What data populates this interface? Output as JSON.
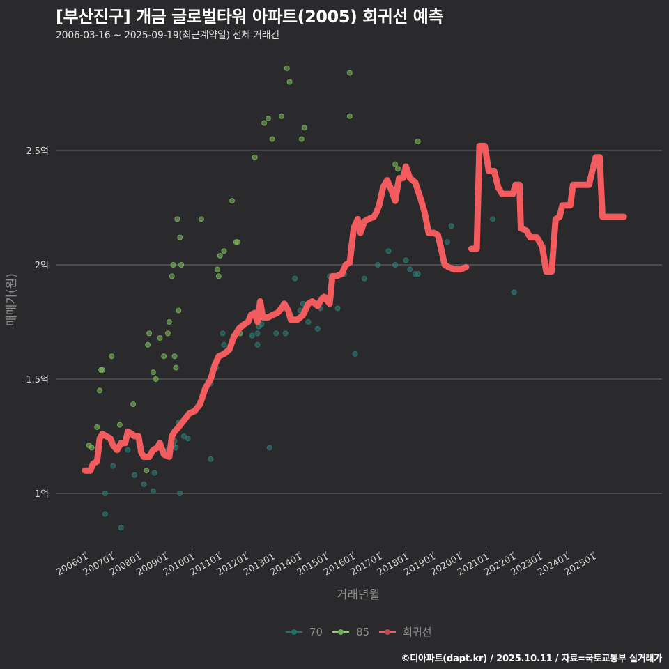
{
  "header": {
    "title": "[부산진구] 개금 글로벌타워 아파트(2005) 회귀선 예측",
    "subtitle": "2006-03-16 ~ 2025-09-19(최근계약일) 전체 거래건"
  },
  "legend": {
    "items": [
      {
        "label": "70",
        "color": "#1f6f6a"
      },
      {
        "label": "85",
        "color": "#8fd16a"
      },
      {
        "label": "회귀선",
        "color": "#f25c5f"
      }
    ]
  },
  "footer": {
    "text": "©디아파트(dapt.kr) / 2025.10.11 / 자료=국토교통부 실거래가"
  },
  "colors": {
    "background": "#2a2a2c",
    "grid": "#6b6b6b",
    "regression": "#f25c5f",
    "size70": "#2e7f78",
    "size85": "#7dbd5f"
  },
  "chart_data": {
    "type": "scatter",
    "title": "[부산진구] 개금 글로벌타워 아파트(2005) 회귀선 예측",
    "subtitle": "2006-03-16 ~ 2025-09-19(최근계약일) 전체 거래건",
    "xlabel": "거래년월",
    "ylabel": "매매가(원)",
    "x_tick_labels": [
      "200601",
      "200701",
      "200801",
      "200901",
      "201001",
      "201101",
      "201201",
      "201301",
      "201401",
      "201501",
      "201601",
      "201701",
      "201801",
      "201901",
      "202001",
      "202101",
      "202201",
      "202301",
      "202401",
      "202501"
    ],
    "y_tick_labels": [
      "1억",
      "1.5억",
      "2억",
      "2.5억"
    ],
    "y_ticks": [
      1.0,
      1.5,
      2.0,
      2.5
    ],
    "ylim": [
      0.78,
      2.95
    ],
    "y_unit": "억",
    "grid": "horizontal",
    "legend_position": "bottom",
    "series": [
      {
        "name": "70",
        "type": "scatter",
        "points": [
          [
            2006.75,
            1.0
          ],
          [
            2006.75,
            0.91
          ],
          [
            2007.05,
            1.12
          ],
          [
            2007.35,
            0.85
          ],
          [
            2007.6,
            1.19
          ],
          [
            2007.85,
            1.08
          ],
          [
            2008.2,
            1.04
          ],
          [
            2008.55,
            1.01
          ],
          [
            2008.6,
            1.09
          ],
          [
            2009.1,
            1.19
          ],
          [
            2009.3,
            1.21
          ],
          [
            2009.4,
            1.2
          ],
          [
            2009.35,
            1.23
          ],
          [
            2009.5,
            1.31
          ],
          [
            2009.7,
            1.25
          ],
          [
            2009.85,
            1.24
          ],
          [
            2009.55,
            1.0
          ],
          [
            2010.3,
            1.4
          ],
          [
            2010.5,
            1.46
          ],
          [
            2010.7,
            1.48
          ],
          [
            2010.7,
            1.15
          ],
          [
            2010.9,
            1.55
          ],
          [
            2011.15,
            1.7
          ],
          [
            2011.2,
            1.65
          ],
          [
            2011.55,
            1.69
          ],
          [
            2011.55,
            1.68
          ],
          [
            2012.25,
            1.69
          ],
          [
            2012.45,
            1.7
          ],
          [
            2012.45,
            1.65
          ],
          [
            2012.5,
            1.73
          ],
          [
            2012.6,
            1.74
          ],
          [
            2012.9,
            1.2
          ],
          [
            2013.15,
            1.7
          ],
          [
            2013.5,
            1.7
          ],
          [
            2013.7,
            1.78
          ],
          [
            2013.85,
            1.94
          ],
          [
            2014.05,
            1.8
          ],
          [
            2014.15,
            1.83
          ],
          [
            2014.35,
            1.75
          ],
          [
            2014.7,
            1.72
          ],
          [
            2014.8,
            1.81
          ],
          [
            2015.0,
            1.85
          ],
          [
            2015.15,
            1.95
          ],
          [
            2015.45,
            1.81
          ],
          [
            2015.7,
            1.96
          ],
          [
            2016.1,
            1.61
          ],
          [
            2016.45,
            1.94
          ],
          [
            2016.95,
            2.0
          ],
          [
            2017.35,
            2.06
          ],
          [
            2017.6,
            2.0
          ],
          [
            2018.0,
            2.02
          ],
          [
            2018.15,
            1.98
          ],
          [
            2018.35,
            1.96
          ],
          [
            2018.45,
            1.96
          ],
          [
            2019.3,
            2.07
          ],
          [
            2019.55,
            2.1
          ],
          [
            2019.7,
            2.17
          ],
          [
            2021.25,
            2.2
          ],
          [
            2022.05,
            1.88
          ]
        ]
      },
      {
        "name": "85",
        "type": "scatter",
        "points": [
          [
            2006.15,
            1.21
          ],
          [
            2006.25,
            1.2
          ],
          [
            2006.45,
            1.29
          ],
          [
            2006.55,
            1.45
          ],
          [
            2006.6,
            1.54
          ],
          [
            2006.65,
            1.54
          ],
          [
            2007.0,
            1.6
          ],
          [
            2007.3,
            1.3
          ],
          [
            2007.8,
            1.39
          ],
          [
            2008.3,
            1.1
          ],
          [
            2008.35,
            1.65
          ],
          [
            2008.4,
            1.7
          ],
          [
            2008.55,
            1.53
          ],
          [
            2008.65,
            1.5
          ],
          [
            2008.8,
            1.68
          ],
          [
            2008.95,
            1.6
          ],
          [
            2009.1,
            1.7
          ],
          [
            2009.15,
            1.75
          ],
          [
            2009.25,
            1.95
          ],
          [
            2009.3,
            2.0
          ],
          [
            2009.35,
            1.6
          ],
          [
            2009.4,
            1.55
          ],
          [
            2009.45,
            2.2
          ],
          [
            2009.5,
            1.8
          ],
          [
            2009.55,
            2.12
          ],
          [
            2009.6,
            2.0
          ],
          [
            2010.35,
            2.2
          ],
          [
            2010.95,
            1.98
          ],
          [
            2011.0,
            1.95
          ],
          [
            2011.05,
            2.04
          ],
          [
            2011.2,
            2.06
          ],
          [
            2011.5,
            2.28
          ],
          [
            2011.65,
            2.1
          ],
          [
            2011.7,
            2.1
          ],
          [
            2011.8,
            1.7
          ],
          [
            2012.35,
            2.47
          ],
          [
            2012.7,
            2.62
          ],
          [
            2012.85,
            2.64
          ],
          [
            2013.0,
            2.55
          ],
          [
            2013.35,
            2.65
          ],
          [
            2013.55,
            2.86
          ],
          [
            2013.65,
            2.8
          ],
          [
            2014.1,
            2.55
          ],
          [
            2014.2,
            2.6
          ],
          [
            2015.9,
            2.84
          ],
          [
            2015.9,
            2.65
          ],
          [
            2017.6,
            2.44
          ],
          [
            2017.7,
            2.42
          ],
          [
            2018.45,
            2.54
          ]
        ]
      },
      {
        "name": "회귀선",
        "type": "line",
        "segments": [
          [
            [
              2006.0,
              1.1
            ],
            [
              2006.2,
              1.1
            ],
            [
              2006.3,
              1.13
            ],
            [
              2006.45,
              1.14
            ],
            [
              2006.55,
              1.24
            ],
            [
              2006.65,
              1.26
            ],
            [
              2006.8,
              1.25
            ],
            [
              2006.95,
              1.24
            ],
            [
              2007.05,
              1.21
            ],
            [
              2007.2,
              1.19
            ],
            [
              2007.35,
              1.22
            ],
            [
              2007.5,
              1.22
            ],
            [
              2007.6,
              1.27
            ],
            [
              2007.75,
              1.26
            ],
            [
              2007.85,
              1.25
            ],
            [
              2008.0,
              1.25
            ],
            [
              2008.1,
              1.18
            ],
            [
              2008.2,
              1.16
            ],
            [
              2008.4,
              1.16
            ],
            [
              2008.55,
              1.19
            ],
            [
              2008.7,
              1.2
            ],
            [
              2008.8,
              1.22
            ],
            [
              2008.95,
              1.17
            ],
            [
              2009.15,
              1.16
            ],
            [
              2009.25,
              1.25
            ],
            [
              2009.35,
              1.27
            ],
            [
              2009.5,
              1.29
            ],
            [
              2009.7,
              1.32
            ],
            [
              2009.9,
              1.35
            ],
            [
              2010.1,
              1.36
            ],
            [
              2010.3,
              1.39
            ],
            [
              2010.5,
              1.46
            ],
            [
              2010.7,
              1.5
            ],
            [
              2010.85,
              1.56
            ],
            [
              2011.0,
              1.6
            ],
            [
              2011.2,
              1.61
            ],
            [
              2011.4,
              1.63
            ],
            [
              2011.55,
              1.68
            ],
            [
              2011.75,
              1.72
            ],
            [
              2011.95,
              1.74
            ],
            [
              2012.1,
              1.75
            ],
            [
              2012.2,
              1.78
            ],
            [
              2012.35,
              1.79
            ],
            [
              2012.45,
              1.75
            ],
            [
              2012.55,
              1.84
            ],
            [
              2012.65,
              1.77
            ],
            [
              2012.85,
              1.77
            ],
            [
              2013.0,
              1.78
            ],
            [
              2013.2,
              1.79
            ],
            [
              2013.35,
              1.81
            ],
            [
              2013.45,
              1.83
            ],
            [
              2013.6,
              1.8
            ],
            [
              2013.7,
              1.76
            ],
            [
              2013.95,
              1.76
            ],
            [
              2014.15,
              1.78
            ],
            [
              2014.35,
              1.83
            ],
            [
              2014.5,
              1.84
            ],
            [
              2014.7,
              1.82
            ],
            [
              2014.85,
              1.85
            ],
            [
              2014.95,
              1.86
            ],
            [
              2015.15,
              1.83
            ],
            [
              2015.25,
              1.95
            ],
            [
              2015.4,
              1.95
            ],
            [
              2015.6,
              1.96
            ],
            [
              2015.75,
              2.0
            ],
            [
              2015.9,
              2.01
            ],
            [
              2016.05,
              2.16
            ],
            [
              2016.2,
              2.2
            ],
            [
              2016.3,
              2.14
            ],
            [
              2016.45,
              2.19
            ],
            [
              2016.6,
              2.2
            ],
            [
              2016.8,
              2.21
            ],
            [
              2016.9,
              2.23
            ],
            [
              2017.0,
              2.26
            ],
            [
              2017.15,
              2.34
            ],
            [
              2017.3,
              2.37
            ],
            [
              2017.45,
              2.33
            ],
            [
              2017.6,
              2.28
            ],
            [
              2017.75,
              2.38
            ],
            [
              2017.9,
              2.38
            ],
            [
              2018.0,
              2.43
            ],
            [
              2018.15,
              2.38
            ],
            [
              2018.35,
              2.36
            ],
            [
              2018.55,
              2.29
            ],
            [
              2018.7,
              2.23
            ],
            [
              2018.85,
              2.14
            ],
            [
              2019.05,
              2.14
            ],
            [
              2019.2,
              2.13
            ],
            [
              2019.3,
              2.08
            ],
            [
              2019.45,
              2.0
            ],
            [
              2019.6,
              1.99
            ],
            [
              2019.8,
              1.98
            ],
            [
              2020.05,
              1.98
            ],
            [
              2020.25,
              1.99
            ]
          ],
          [
            [
              2020.45,
              2.07
            ],
            [
              2020.65,
              2.07
            ],
            [
              2020.75,
              2.52
            ],
            [
              2020.95,
              2.52
            ],
            [
              2021.1,
              2.41
            ],
            [
              2021.3,
              2.41
            ],
            [
              2021.45,
              2.34
            ],
            [
              2021.6,
              2.31
            ],
            [
              2021.85,
              2.31
            ],
            [
              2022.0,
              2.31
            ],
            [
              2022.1,
              2.35
            ],
            [
              2022.25,
              2.35
            ],
            [
              2022.3,
              2.16
            ],
            [
              2022.5,
              2.15
            ],
            [
              2022.65,
              2.12
            ],
            [
              2022.9,
              2.12
            ],
            [
              2023.1,
              2.08
            ],
            [
              2023.25,
              1.97
            ],
            [
              2023.45,
              1.97
            ],
            [
              2023.6,
              2.2
            ],
            [
              2023.75,
              2.21
            ],
            [
              2023.85,
              2.26
            ],
            [
              2024.15,
              2.26
            ],
            [
              2024.25,
              2.35
            ],
            [
              2024.6,
              2.35
            ],
            [
              2024.85,
              2.35
            ],
            [
              2024.95,
              2.4
            ],
            [
              2025.1,
              2.47
            ],
            [
              2025.25,
              2.47
            ],
            [
              2025.35,
              2.21
            ],
            [
              2025.6,
              2.21
            ],
            [
              2025.8,
              2.21
            ],
            [
              2025.9,
              2.21
            ],
            [
              2026.15,
              2.21
            ]
          ]
        ]
      }
    ]
  }
}
